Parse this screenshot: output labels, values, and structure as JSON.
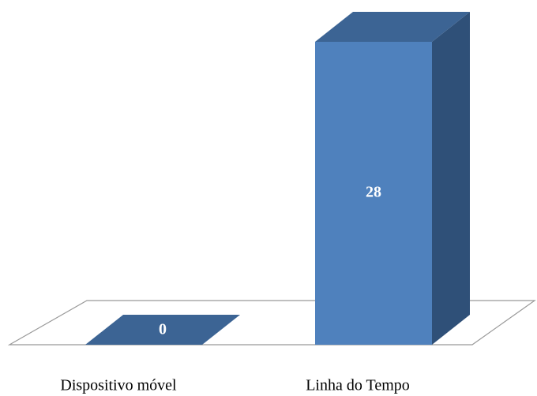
{
  "chart_data": {
    "type": "bar3d",
    "categories": [
      "Dispositivo móvel",
      "Linha do Tempo"
    ],
    "values": [
      0,
      28
    ],
    "color": "#4f81bd"
  }
}
